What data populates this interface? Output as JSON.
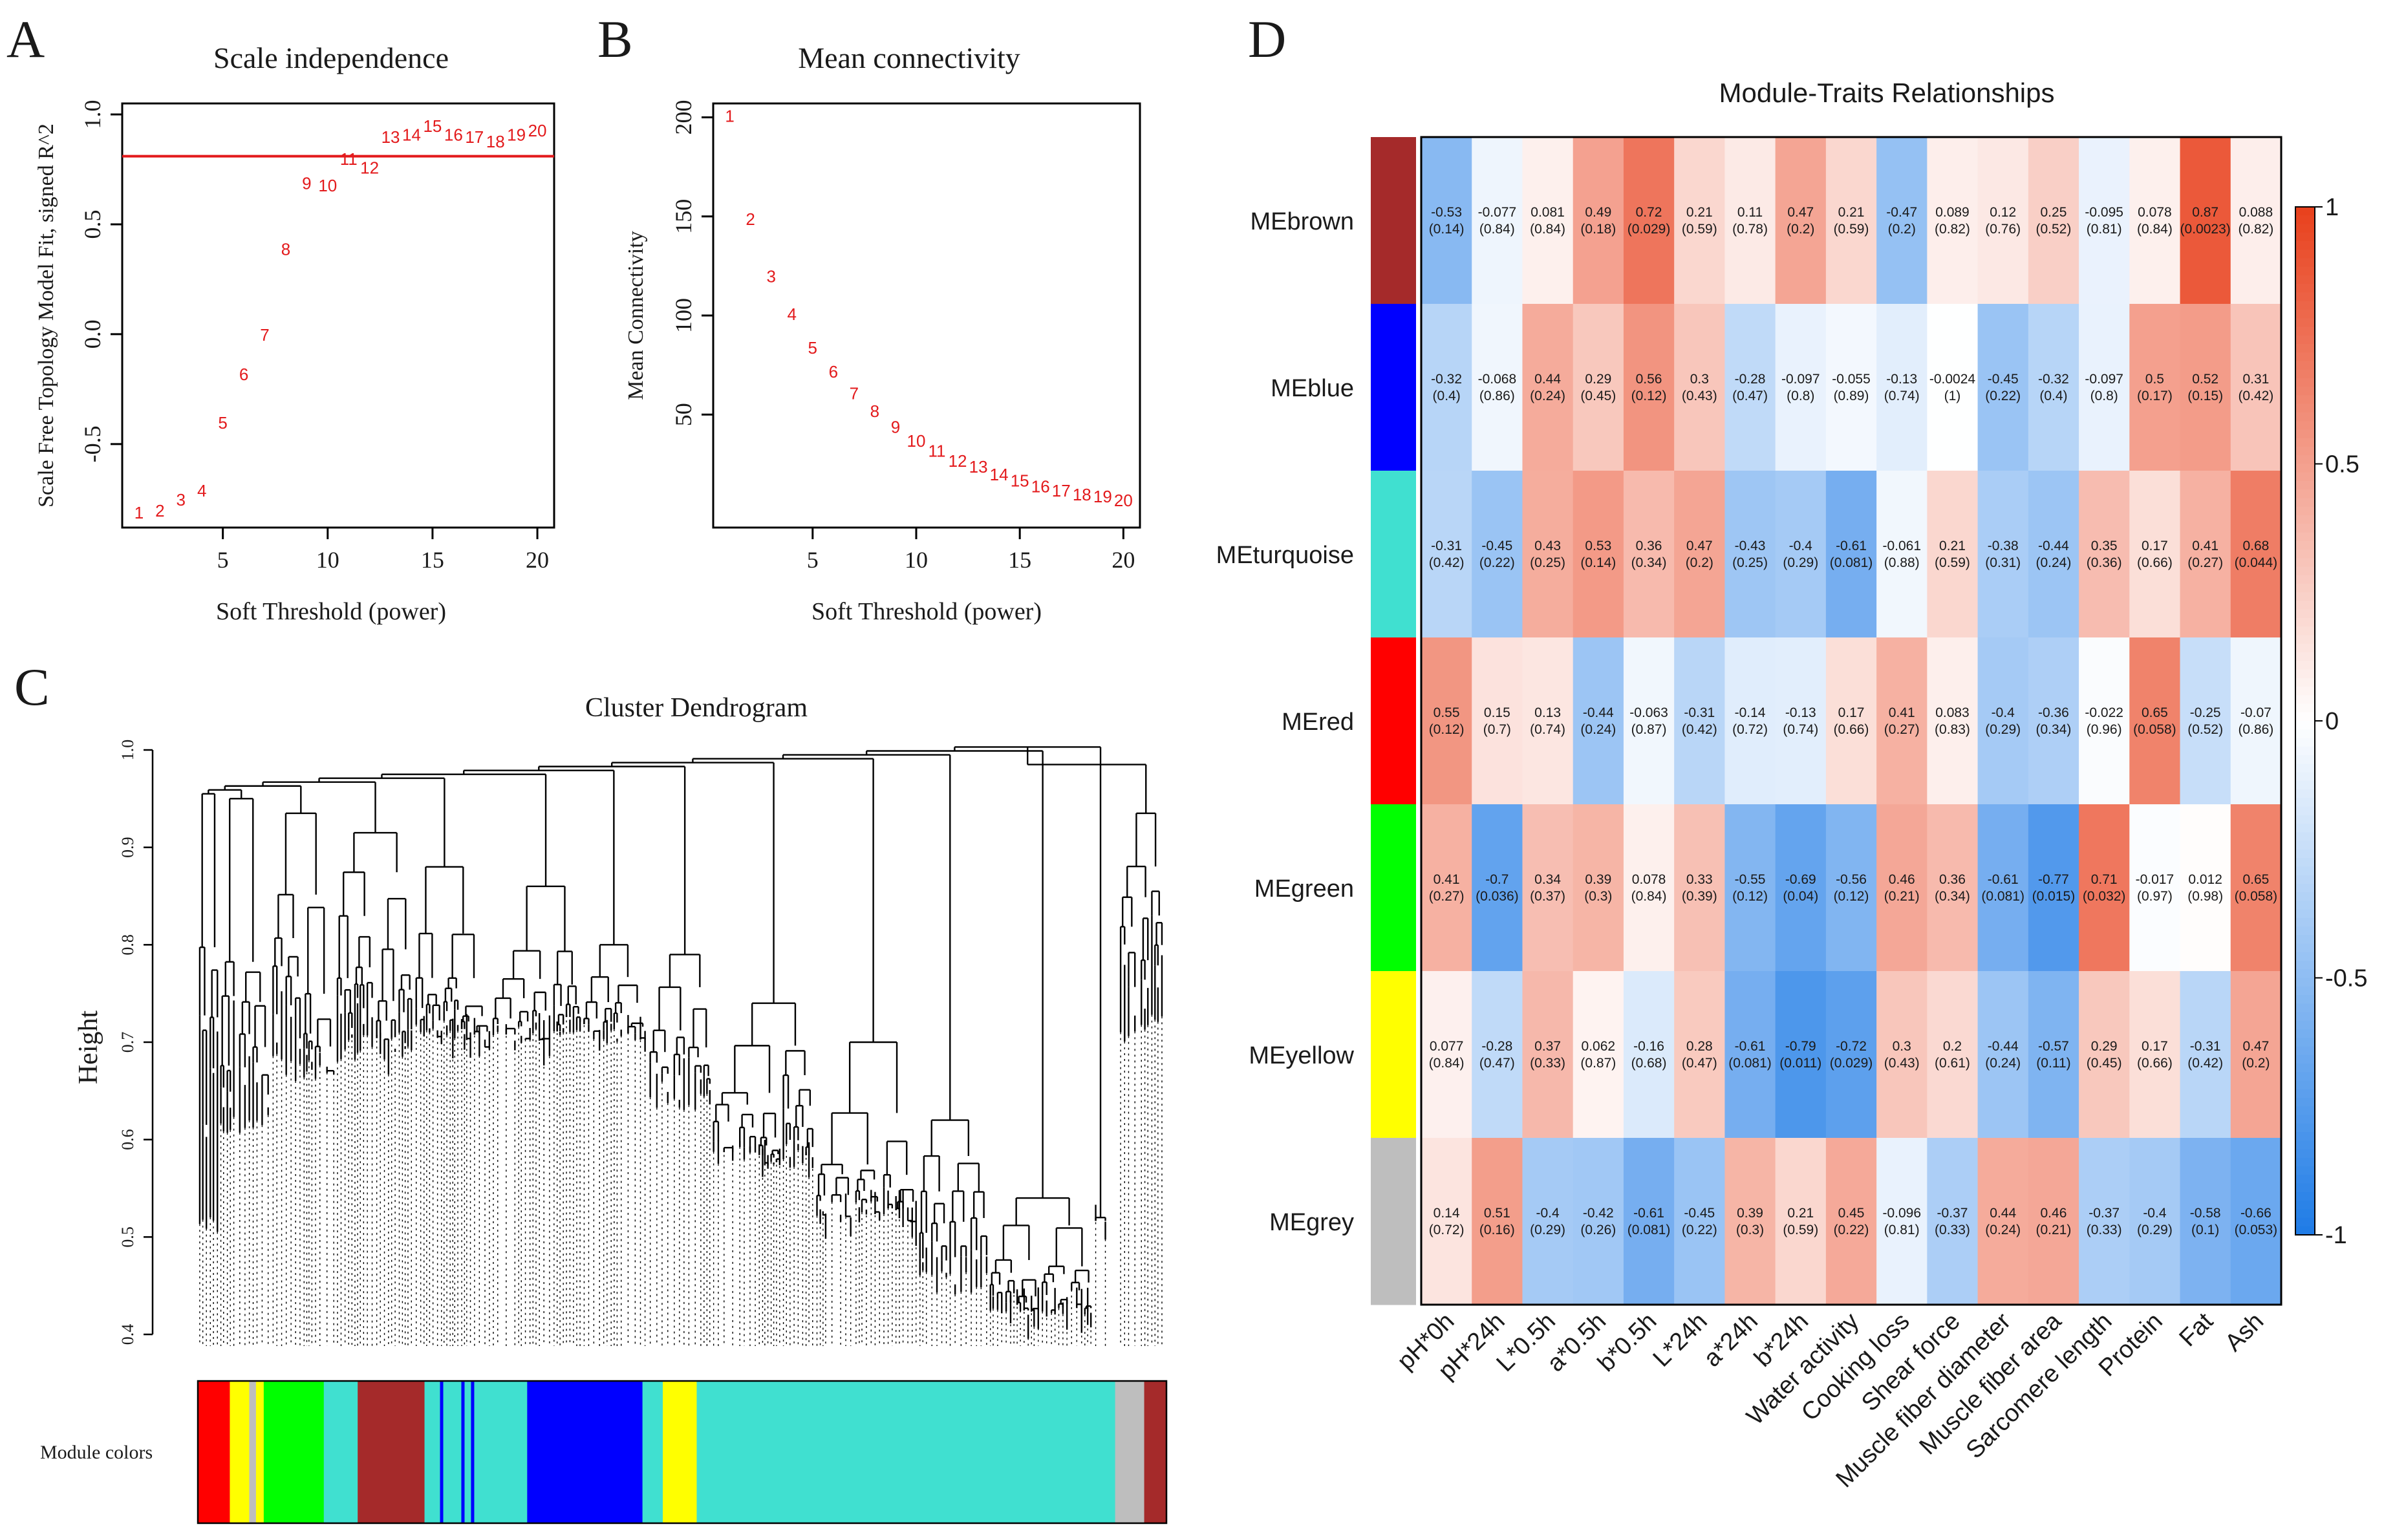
{
  "chart_data": [
    {
      "panel": "A",
      "type": "scatter",
      "title": "Scale independence",
      "xlabel": "Soft Threshold (power)",
      "ylabel": "Scale Free Topology Model Fit, signed R^2",
      "xlim": [
        0.2,
        20.8
      ],
      "ylim": [
        -0.88,
        1.05
      ],
      "xticks": [
        5,
        10,
        15,
        20
      ],
      "yticks": [
        -0.5,
        0.0,
        0.5,
        1.0
      ],
      "ytick_labels": [
        "-0.5",
        "0.0",
        "0.5",
        "1.0"
      ],
      "threshold_line": 0.81,
      "threshold_color": "#e31a1c",
      "point_color": "#e31a1c",
      "points": [
        {
          "x": 1,
          "y": -0.81,
          "label": "1"
        },
        {
          "x": 2,
          "y": -0.8,
          "label": "2"
        },
        {
          "x": 3,
          "y": -0.75,
          "label": "3"
        },
        {
          "x": 4,
          "y": -0.71,
          "label": "4"
        },
        {
          "x": 5,
          "y": -0.4,
          "label": "5"
        },
        {
          "x": 6,
          "y": -0.18,
          "label": "6"
        },
        {
          "x": 7,
          "y": 0.0,
          "label": "7"
        },
        {
          "x": 8,
          "y": 0.39,
          "label": "8"
        },
        {
          "x": 9,
          "y": 0.69,
          "label": "9"
        },
        {
          "x": 10,
          "y": 0.68,
          "label": "10"
        },
        {
          "x": 11,
          "y": 0.8,
          "label": "11"
        },
        {
          "x": 12,
          "y": 0.76,
          "label": "12"
        },
        {
          "x": 13,
          "y": 0.9,
          "label": "13"
        },
        {
          "x": 14,
          "y": 0.91,
          "label": "14"
        },
        {
          "x": 15,
          "y": 0.95,
          "label": "15"
        },
        {
          "x": 16,
          "y": 0.91,
          "label": "16"
        },
        {
          "x": 17,
          "y": 0.9,
          "label": "17"
        },
        {
          "x": 18,
          "y": 0.88,
          "label": "18"
        },
        {
          "x": 19,
          "y": 0.91,
          "label": "19"
        },
        {
          "x": 20,
          "y": 0.93,
          "label": "20"
        }
      ]
    },
    {
      "panel": "B",
      "type": "scatter",
      "title": "Mean connectivity",
      "xlabel": "Soft Threshold (power)",
      "ylabel": "Mean Connectivity",
      "xlim": [
        0.2,
        20.8
      ],
      "ylim": [
        -7,
        207
      ],
      "xticks": [
        5,
        10,
        15,
        20
      ],
      "yticks": [
        50,
        100,
        150,
        200
      ],
      "ytick_labels": [
        "50",
        "100",
        "150",
        "200"
      ],
      "point_color": "#e31a1c",
      "points": [
        {
          "x": 1,
          "y": 201,
          "label": "1"
        },
        {
          "x": 2,
          "y": 149,
          "label": "2"
        },
        {
          "x": 3,
          "y": 120,
          "label": "3"
        },
        {
          "x": 4,
          "y": 101,
          "label": "4"
        },
        {
          "x": 5,
          "y": 84,
          "label": "5"
        },
        {
          "x": 6,
          "y": 72,
          "label": "6"
        },
        {
          "x": 7,
          "y": 61,
          "label": "7"
        },
        {
          "x": 8,
          "y": 52,
          "label": "8"
        },
        {
          "x": 9,
          "y": 44,
          "label": "9"
        },
        {
          "x": 10,
          "y": 37,
          "label": "10"
        },
        {
          "x": 11,
          "y": 32,
          "label": "11"
        },
        {
          "x": 12,
          "y": 27,
          "label": "12"
        },
        {
          "x": 13,
          "y": 24,
          "label": "13"
        },
        {
          "x": 14,
          "y": 20,
          "label": "14"
        },
        {
          "x": 15,
          "y": 17,
          "label": "15"
        },
        {
          "x": 16,
          "y": 14,
          "label": "16"
        },
        {
          "x": 17,
          "y": 12,
          "label": "17"
        },
        {
          "x": 18,
          "y": 10,
          "label": "18"
        },
        {
          "x": 19,
          "y": 9,
          "label": "19"
        },
        {
          "x": 20,
          "y": 7,
          "label": "20"
        }
      ]
    },
    {
      "panel": "C",
      "type": "dendrogram",
      "title": "Cluster Dendrogram",
      "ylabel": "Height",
      "ylim": [
        0.4,
        1.0
      ],
      "yticks": [
        0.4,
        0.5,
        0.6,
        0.7,
        0.8,
        0.9,
        1.0
      ],
      "ytick_labels": [
        "0.4",
        "0.5",
        "0.6",
        "0.7",
        "0.8",
        "0.9",
        "1.0"
      ],
      "color_bar_label": "Module colors",
      "module_segments": [
        {
          "module": "red",
          "color": "#ff0000",
          "start": 0.0,
          "end": 0.033
        },
        {
          "module": "yellow",
          "color": "#ffff00",
          "start": 0.033,
          "end": 0.053
        },
        {
          "module": "grey",
          "color": "#bebebe",
          "start": 0.053,
          "end": 0.06
        },
        {
          "module": "yellow",
          "color": "#ffff00",
          "start": 0.06,
          "end": 0.068
        },
        {
          "module": "green",
          "color": "#00ff00",
          "start": 0.068,
          "end": 0.13
        },
        {
          "module": "turquoise",
          "color": "#40e0d0",
          "start": 0.13,
          "end": 0.165
        },
        {
          "module": "brown",
          "color": "#a52a2a",
          "start": 0.165,
          "end": 0.234
        },
        {
          "module": "turquoise",
          "color": "#40e0d0",
          "start": 0.234,
          "end": 0.34
        },
        {
          "module": "blue",
          "color": "#0000ff",
          "start": 0.34,
          "end": 0.459
        },
        {
          "module": "turquoise",
          "color": "#40e0d0",
          "start": 0.459,
          "end": 0.48
        },
        {
          "module": "yellow",
          "color": "#ffff00",
          "start": 0.48,
          "end": 0.515
        },
        {
          "module": "turquoise",
          "color": "#40e0d0",
          "start": 0.515,
          "end": 0.947
        },
        {
          "module": "grey",
          "color": "#bebebe",
          "start": 0.947,
          "end": 0.977
        },
        {
          "module": "brown",
          "color": "#a52a2a",
          "start": 0.977,
          "end": 1.0
        }
      ],
      "module_stripes": [
        {
          "module": "blue",
          "color": "#0000ff",
          "at": 0.25
        },
        {
          "module": "blue",
          "color": "#0000ff",
          "at": 0.272
        },
        {
          "module": "blue",
          "color": "#0000ff",
          "at": 0.282
        }
      ]
    },
    {
      "panel": "D",
      "type": "heatmap",
      "title": "Module-Traits Relationships",
      "rows": [
        {
          "name": "MEbrown",
          "color": "#a52a2a"
        },
        {
          "name": "MEblue",
          "color": "#0000ff"
        },
        {
          "name": "MEturquoise",
          "color": "#40e0d0"
        },
        {
          "name": "MEred",
          "color": "#ff0000"
        },
        {
          "name": "MEgreen",
          "color": "#00ff00"
        },
        {
          "name": "MEyellow",
          "color": "#ffff00"
        },
        {
          "name": "MEgrey",
          "color": "#bebebe"
        }
      ],
      "columns": [
        "pH*0h",
        "pH*24h",
        "L*0.5h",
        "a*0.5h",
        "b*0.5h",
        "L*24h",
        "a*24h",
        "b*24h",
        "Water activity",
        "Cooking loss",
        "Shear force",
        "Muscle fiber diameter",
        "Muscle fiber area",
        "Sarcomere length",
        "Protein",
        "Fat",
        "Ash"
      ],
      "correlations": [
        [
          "-0.53",
          "-0.077",
          "0.081",
          "0.49",
          "0.72",
          "0.21",
          "0.11",
          "0.47",
          "0.21",
          "-0.47",
          "0.089",
          "0.12",
          "0.25",
          "-0.095",
          "0.078",
          "0.87",
          "0.088"
        ],
        [
          "-0.32",
          "-0.068",
          "0.44",
          "0.29",
          "0.56",
          "0.3",
          "-0.28",
          "-0.097",
          "-0.055",
          "-0.13",
          "-0.0024",
          "-0.45",
          "-0.32",
          "-0.097",
          "0.5",
          "0.52",
          "0.31"
        ],
        [
          "-0.31",
          "-0.45",
          "0.43",
          "0.53",
          "0.36",
          "0.47",
          "-0.43",
          "-0.4",
          "-0.61",
          "-0.061",
          "0.21",
          "-0.38",
          "-0.44",
          "0.35",
          "0.17",
          "0.41",
          "0.68"
        ],
        [
          "0.55",
          "0.15",
          "0.13",
          "-0.44",
          "-0.063",
          "-0.31",
          "-0.14",
          "-0.13",
          "0.17",
          "0.41",
          "0.083",
          "-0.4",
          "-0.36",
          "-0.022",
          "0.65",
          "-0.25",
          "-0.07"
        ],
        [
          "0.41",
          "-0.7",
          "0.34",
          "0.39",
          "0.078",
          "0.33",
          "-0.55",
          "-0.69",
          "-0.56",
          "0.46",
          "0.36",
          "-0.61",
          "-0.77",
          "0.71",
          "-0.017",
          "0.012",
          "0.65"
        ],
        [
          "0.077",
          "-0.28",
          "0.37",
          "0.062",
          "-0.16",
          "0.28",
          "-0.61",
          "-0.79",
          "-0.72",
          "0.3",
          "0.2",
          "-0.44",
          "-0.57",
          "0.29",
          "0.17",
          "-0.31",
          "0.47"
        ],
        [
          "0.14",
          "0.51",
          "-0.4",
          "-0.42",
          "-0.61",
          "-0.45",
          "0.39",
          "0.21",
          "0.45",
          "-0.096",
          "-0.37",
          "0.44",
          "0.46",
          "-0.37",
          "-0.4",
          "-0.58",
          "-0.66"
        ]
      ],
      "pvalues": [
        [
          "(0.14)",
          "(0.84)",
          "(0.84)",
          "(0.18)",
          "(0.029)",
          "(0.59)",
          "(0.78)",
          "(0.2)",
          "(0.59)",
          "(0.2)",
          "(0.82)",
          "(0.76)",
          "(0.52)",
          "(0.81)",
          "(0.84)",
          "(0.0023)",
          "(0.82)"
        ],
        [
          "(0.4)",
          "(0.86)",
          "(0.24)",
          "(0.45)",
          "(0.12)",
          "(0.43)",
          "(0.47)",
          "(0.8)",
          "(0.89)",
          "(0.74)",
          "(1)",
          "(0.22)",
          "(0.4)",
          "(0.8)",
          "(0.17)",
          "(0.15)",
          "(0.42)"
        ],
        [
          "(0.42)",
          "(0.22)",
          "(0.25)",
          "(0.14)",
          "(0.34)",
          "(0.2)",
          "(0.25)",
          "(0.29)",
          "(0.081)",
          "(0.88)",
          "(0.59)",
          "(0.31)",
          "(0.24)",
          "(0.36)",
          "(0.66)",
          "(0.27)",
          "(0.044)"
        ],
        [
          "(0.12)",
          "(0.7)",
          "(0.74)",
          "(0.24)",
          "(0.87)",
          "(0.42)",
          "(0.72)",
          "(0.74)",
          "(0.66)",
          "(0.27)",
          "(0.83)",
          "(0.29)",
          "(0.34)",
          "(0.96)",
          "(0.058)",
          "(0.52)",
          "(0.86)"
        ],
        [
          "(0.27)",
          "(0.036)",
          "(0.37)",
          "(0.3)",
          "(0.84)",
          "(0.39)",
          "(0.12)",
          "(0.04)",
          "(0.12)",
          "(0.21)",
          "(0.34)",
          "(0.081)",
          "(0.015)",
          "(0.032)",
          "(0.97)",
          "(0.98)",
          "(0.058)"
        ],
        [
          "(0.84)",
          "(0.47)",
          "(0.33)",
          "(0.87)",
          "(0.68)",
          "(0.47)",
          "(0.081)",
          "(0.011)",
          "(0.029)",
          "(0.43)",
          "(0.61)",
          "(0.24)",
          "(0.11)",
          "(0.45)",
          "(0.66)",
          "(0.42)",
          "(0.2)"
        ],
        [
          "(0.72)",
          "(0.16)",
          "(0.29)",
          "(0.26)",
          "(0.081)",
          "(0.22)",
          "(0.3)",
          "(0.59)",
          "(0.22)",
          "(0.81)",
          "(0.33)",
          "(0.24)",
          "(0.21)",
          "(0.33)",
          "(0.29)",
          "(0.1)",
          "(0.053)"
        ]
      ],
      "colorbar": {
        "range": [
          -1,
          1
        ],
        "ticks": [
          "1",
          "0.5",
          "0",
          "-0.5",
          "-1"
        ],
        "tick_values": [
          1,
          0.5,
          0,
          -0.5,
          -1
        ],
        "low_color": "#1e7be6",
        "mid_color": "#ffffff",
        "high_color": "#e8401c"
      }
    }
  ],
  "panel_labels": [
    "A",
    "B",
    "C",
    "D"
  ]
}
